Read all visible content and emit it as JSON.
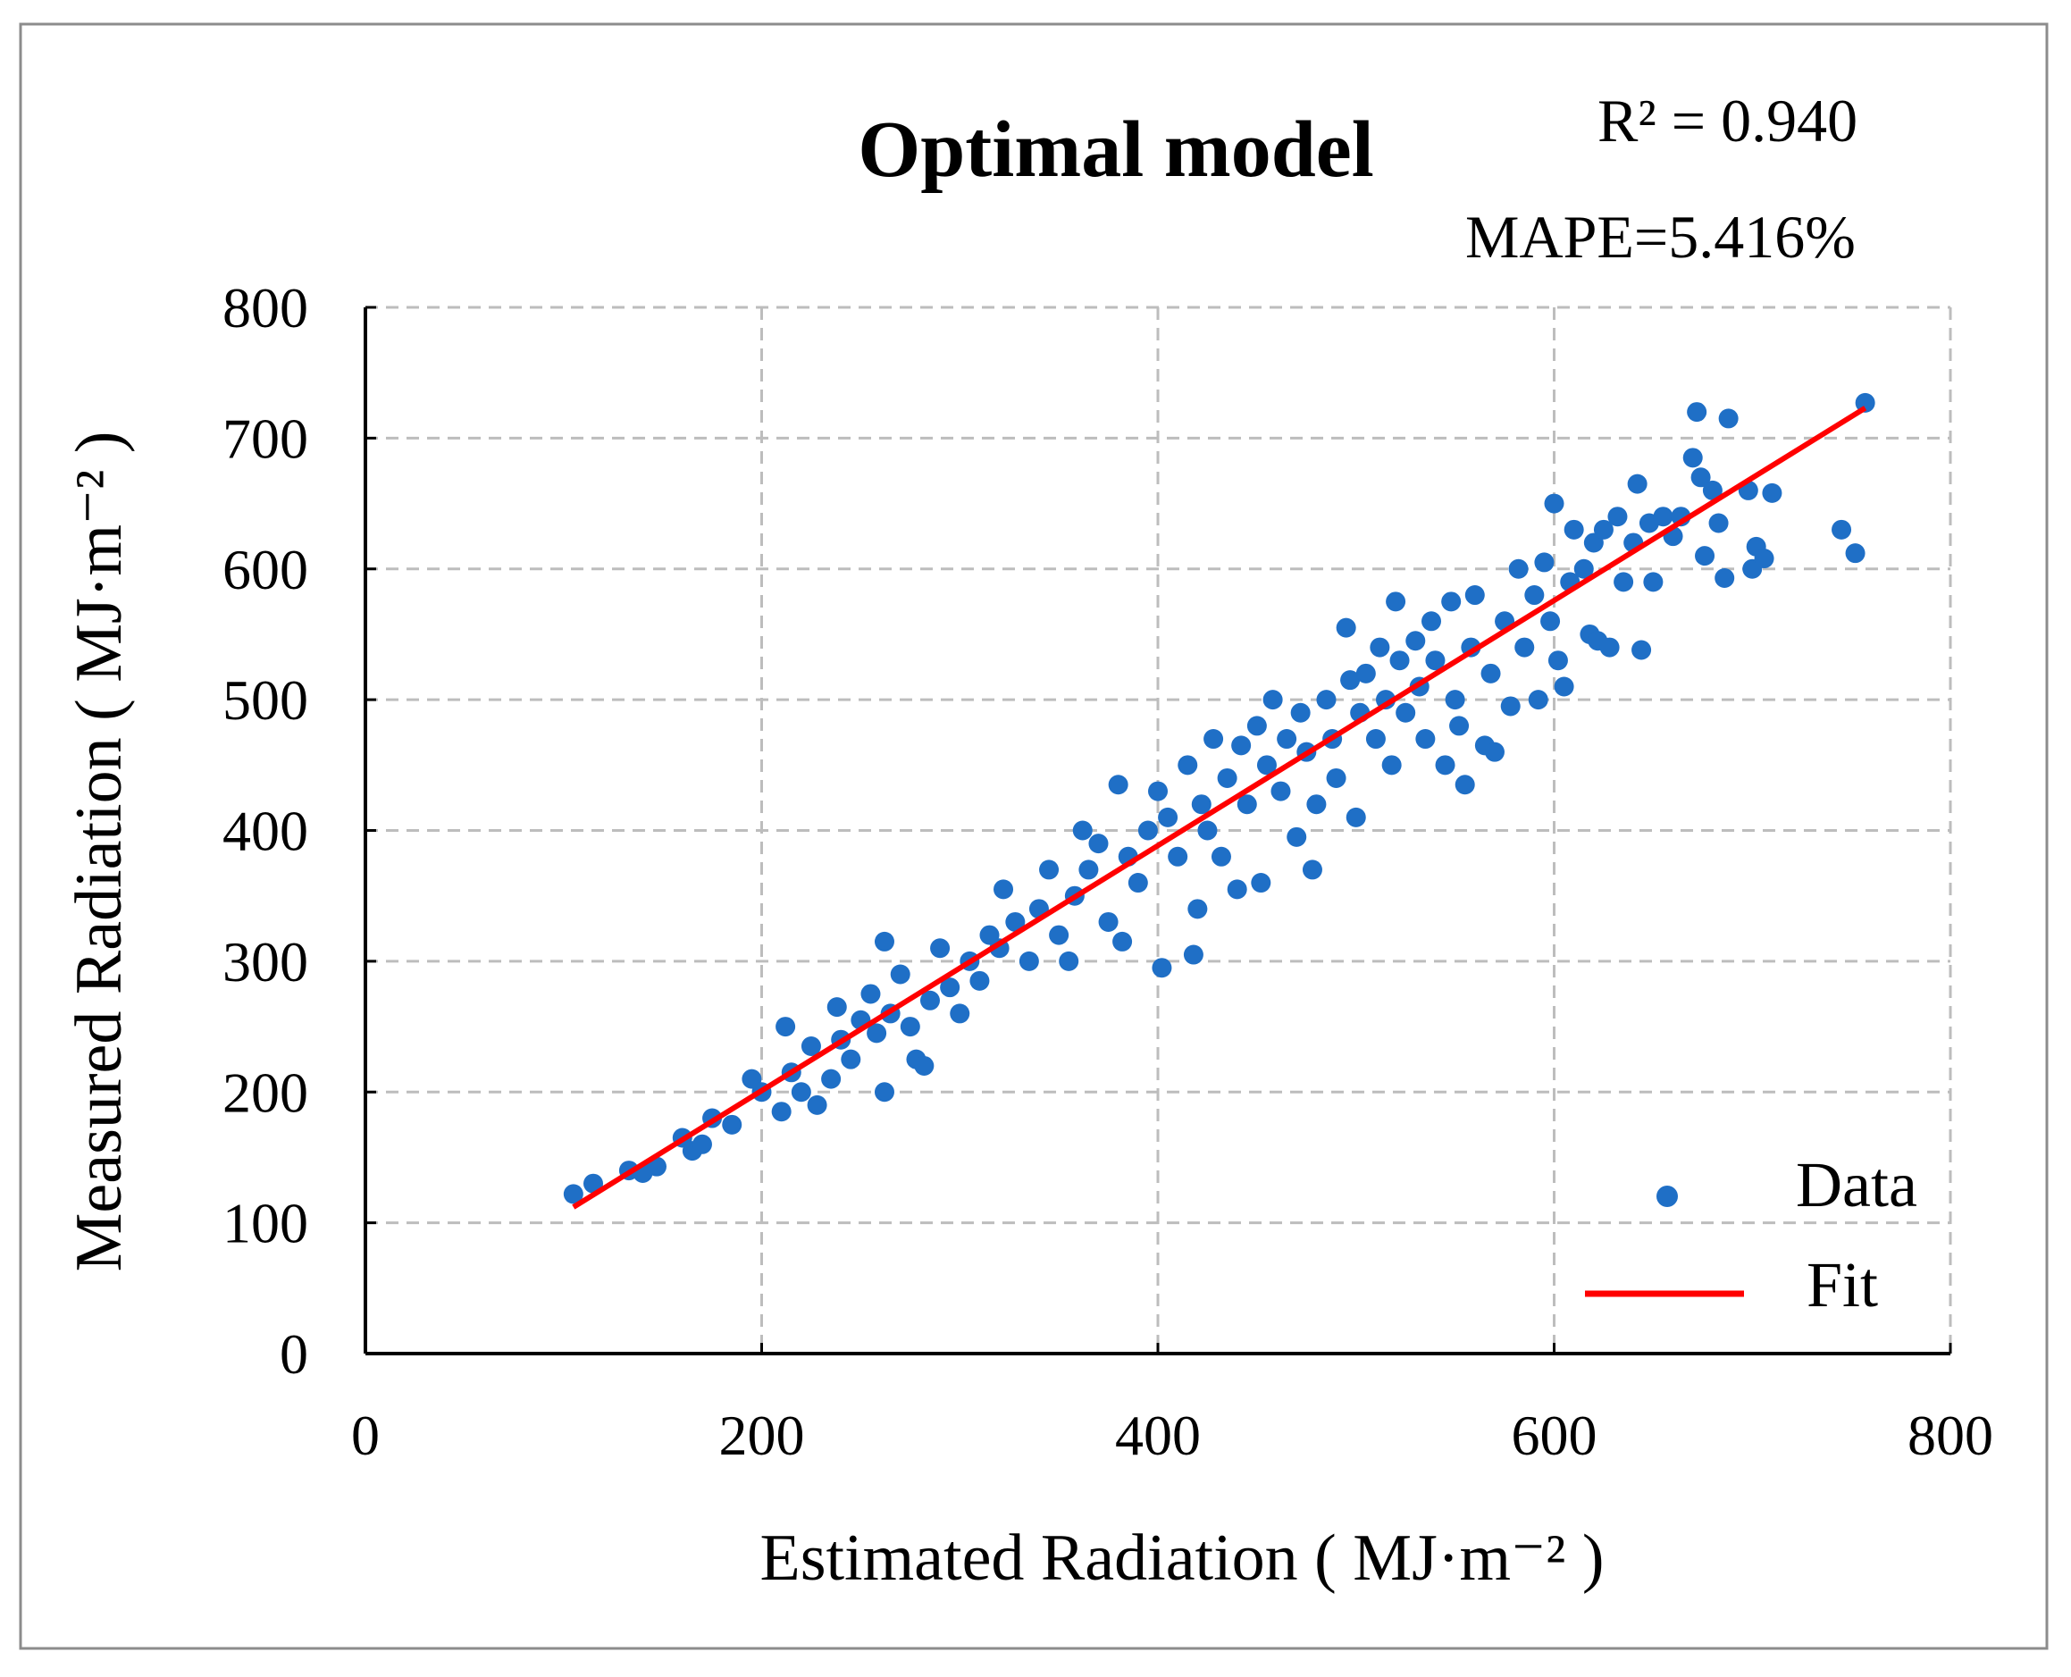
{
  "chart_data": {
    "type": "scatter",
    "title": "Optimal model",
    "annotations": {
      "r2": "R² = 0.940",
      "mape": "MAPE=5.416%"
    },
    "xlabel": "Estimated Radiation ( MJ·m⁻² )",
    "ylabel": "Measured Radiation ( MJ·m⁻² )",
    "xlim": [
      0,
      800
    ],
    "ylim": [
      0,
      800
    ],
    "xticks": [
      "0",
      "200",
      "400",
      "600",
      "800"
    ],
    "yticks": [
      "0",
      "100",
      "200",
      "300",
      "400",
      "500",
      "600",
      "700",
      "800"
    ],
    "grid": true,
    "legend": {
      "placement": "bottom-right",
      "entries": [
        "Data",
        "Fit"
      ]
    },
    "colors": {
      "data": "#1f6fc6",
      "fit": "#ff0000",
      "grid": "#bdbdbd"
    },
    "fit": {
      "x": [
        105,
        757
      ],
      "y": [
        112,
        723
      ]
    },
    "series": [
      {
        "name": "Data",
        "points": [
          [
            105,
            122
          ],
          [
            115,
            130
          ],
          [
            133,
            140
          ],
          [
            140,
            138
          ],
          [
            147,
            143
          ],
          [
            160,
            165
          ],
          [
            165,
            155
          ],
          [
            170,
            160
          ],
          [
            175,
            180
          ],
          [
            185,
            175
          ],
          [
            195,
            210
          ],
          [
            200,
            200
          ],
          [
            210,
            185
          ],
          [
            212,
            250
          ],
          [
            215,
            215
          ],
          [
            220,
            200
          ],
          [
            225,
            235
          ],
          [
            228,
            190
          ],
          [
            235,
            210
          ],
          [
            238,
            265
          ],
          [
            240,
            240
          ],
          [
            245,
            225
          ],
          [
            250,
            255
          ],
          [
            255,
            275
          ],
          [
            258,
            245
          ],
          [
            262,
            200
          ],
          [
            262,
            315
          ],
          [
            265,
            260
          ],
          [
            270,
            290
          ],
          [
            275,
            250
          ],
          [
            278,
            225
          ],
          [
            282,
            220
          ],
          [
            285,
            270
          ],
          [
            290,
            310
          ],
          [
            295,
            280
          ],
          [
            300,
            260
          ],
          [
            305,
            300
          ],
          [
            310,
            285
          ],
          [
            315,
            320
          ],
          [
            320,
            310
          ],
          [
            322,
            355
          ],
          [
            328,
            330
          ],
          [
            335,
            300
          ],
          [
            340,
            340
          ],
          [
            345,
            370
          ],
          [
            350,
            320
          ],
          [
            355,
            300
          ],
          [
            358,
            350
          ],
          [
            362,
            400
          ],
          [
            365,
            370
          ],
          [
            370,
            390
          ],
          [
            375,
            330
          ],
          [
            380,
            435
          ],
          [
            382,
            315
          ],
          [
            385,
            380
          ],
          [
            390,
            360
          ],
          [
            395,
            400
          ],
          [
            400,
            430
          ],
          [
            402,
            295
          ],
          [
            405,
            410
          ],
          [
            410,
            380
          ],
          [
            415,
            450
          ],
          [
            418,
            305
          ],
          [
            420,
            340
          ],
          [
            422,
            420
          ],
          [
            425,
            400
          ],
          [
            428,
            470
          ],
          [
            432,
            380
          ],
          [
            435,
            440
          ],
          [
            440,
            355
          ],
          [
            442,
            465
          ],
          [
            445,
            420
          ],
          [
            450,
            480
          ],
          [
            452,
            360
          ],
          [
            455,
            450
          ],
          [
            458,
            500
          ],
          [
            462,
            430
          ],
          [
            465,
            470
          ],
          [
            470,
            395
          ],
          [
            472,
            490
          ],
          [
            475,
            460
          ],
          [
            478,
            370
          ],
          [
            480,
            420
          ],
          [
            485,
            500
          ],
          [
            488,
            470
          ],
          [
            490,
            440
          ],
          [
            495,
            555
          ],
          [
            497,
            515
          ],
          [
            500,
            410
          ],
          [
            502,
            490
          ],
          [
            505,
            520
          ],
          [
            510,
            470
          ],
          [
            512,
            540
          ],
          [
            515,
            500
          ],
          [
            518,
            450
          ],
          [
            520,
            575
          ],
          [
            522,
            530
          ],
          [
            525,
            490
          ],
          [
            530,
            545
          ],
          [
            532,
            510
          ],
          [
            535,
            470
          ],
          [
            538,
            560
          ],
          [
            540,
            530
          ],
          [
            545,
            450
          ],
          [
            548,
            575
          ],
          [
            550,
            500
          ],
          [
            552,
            480
          ],
          [
            555,
            435
          ],
          [
            558,
            540
          ],
          [
            560,
            580
          ],
          [
            565,
            465
          ],
          [
            568,
            520
          ],
          [
            570,
            460
          ],
          [
            575,
            560
          ],
          [
            578,
            495
          ],
          [
            582,
            600
          ],
          [
            585,
            540
          ],
          [
            590,
            580
          ],
          [
            592,
            500
          ],
          [
            595,
            605
          ],
          [
            598,
            560
          ],
          [
            600,
            650
          ],
          [
            602,
            530
          ],
          [
            605,
            510
          ],
          [
            608,
            590
          ],
          [
            610,
            630
          ],
          [
            615,
            600
          ],
          [
            618,
            550
          ],
          [
            620,
            620
          ],
          [
            622,
            545
          ],
          [
            625,
            630
          ],
          [
            628,
            540
          ],
          [
            632,
            640
          ],
          [
            635,
            590
          ],
          [
            640,
            620
          ],
          [
            642,
            665
          ],
          [
            644,
            538
          ],
          [
            648,
            635
          ],
          [
            650,
            590
          ],
          [
            655,
            640
          ],
          [
            660,
            625
          ],
          [
            664,
            640
          ],
          [
            670,
            685
          ],
          [
            672,
            720
          ],
          [
            674,
            670
          ],
          [
            676,
            610
          ],
          [
            680,
            660
          ],
          [
            683,
            635
          ],
          [
            686,
            593
          ],
          [
            688,
            715
          ],
          [
            698,
            660
          ],
          [
            700,
            600
          ],
          [
            702,
            617
          ],
          [
            706,
            608
          ],
          [
            710,
            658
          ],
          [
            745,
            630
          ],
          [
            752,
            612
          ],
          [
            757,
            727
          ]
        ]
      }
    ]
  }
}
